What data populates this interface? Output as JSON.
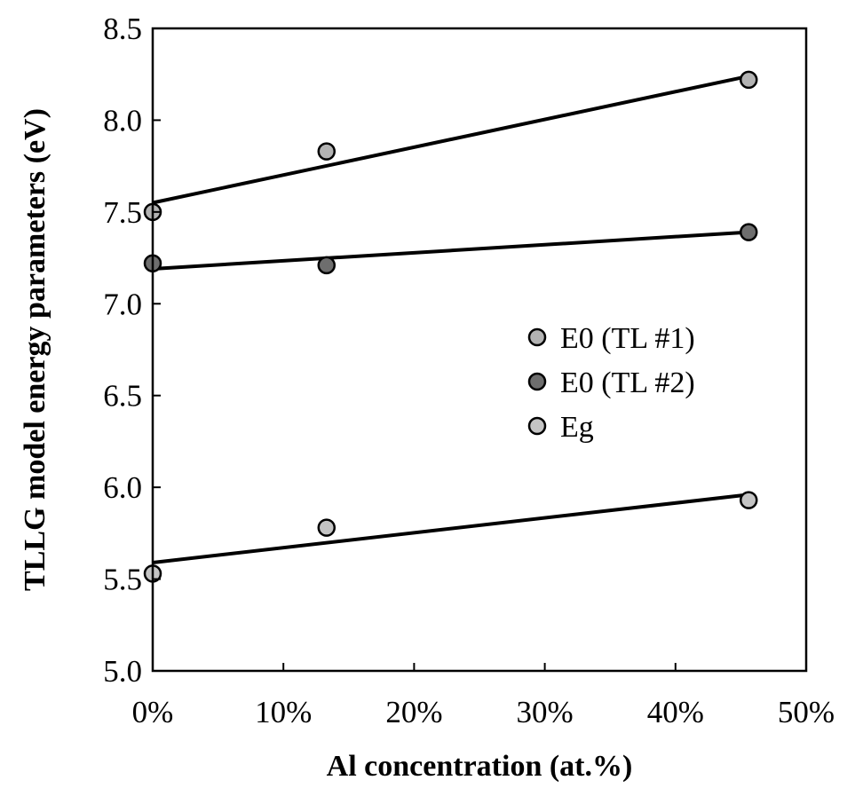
{
  "chart_data": {
    "type": "scatter",
    "title": "",
    "xlabel": "Al concentration (at.%)",
    "ylabel": "TLLG model energy parameters (eV)",
    "xlim": [
      0,
      50
    ],
    "ylim": [
      5.0,
      8.5
    ],
    "x_ticks": [
      0,
      10,
      20,
      30,
      40,
      50
    ],
    "x_tick_labels": [
      "0%",
      "10%",
      "20%",
      "30%",
      "40%",
      "50%"
    ],
    "y_ticks": [
      5.0,
      5.5,
      6.0,
      6.5,
      7.0,
      7.5,
      8.0,
      8.5
    ],
    "y_tick_labels": [
      "5.0",
      "5.5",
      "6.0",
      "6.5",
      "7.0",
      "7.5",
      "8.0",
      "8.5"
    ],
    "grid": false,
    "legend_position": "right-center",
    "series": [
      {
        "name": "E0 (TL #1)",
        "color": "#b3b3b3",
        "x": [
          0,
          13.3,
          45.6
        ],
        "y": [
          7.5,
          7.83,
          8.22
        ],
        "trendline": [
          [
            0,
            7.55
          ],
          [
            45.6,
            8.24
          ]
        ]
      },
      {
        "name": "E0 (TL #2)",
        "color": "#6e6e6e",
        "x": [
          0,
          13.3,
          45.6
        ],
        "y": [
          7.22,
          7.21,
          7.39
        ],
        "trendline": [
          [
            0,
            7.19
          ],
          [
            45.6,
            7.39
          ]
        ]
      },
      {
        "name": "Eg",
        "color": "#c4c4c4",
        "x": [
          0,
          13.3,
          45.6
        ],
        "y": [
          5.53,
          5.78,
          5.93
        ],
        "trendline": [
          [
            0,
            5.59
          ],
          [
            45.6,
            5.96
          ]
        ]
      }
    ]
  }
}
